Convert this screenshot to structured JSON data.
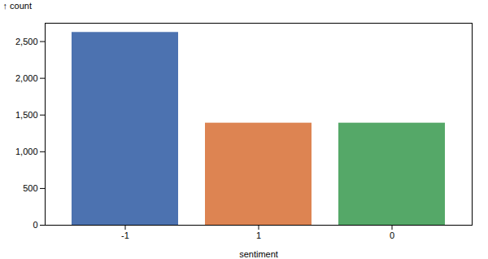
{
  "chart_data": {
    "type": "bar",
    "categories": [
      "-1",
      "1",
      "0"
    ],
    "values": [
      2625,
      1390,
      1390
    ],
    "colors": [
      "#4c72b0",
      "#dd8452",
      "#55a868"
    ],
    "xlabel": "sentiment",
    "ylabel": "count",
    "ylim": [
      0,
      2750
    ],
    "yticks": [
      0,
      500,
      1000,
      1500,
      2000,
      2500
    ],
    "grid": false
  }
}
